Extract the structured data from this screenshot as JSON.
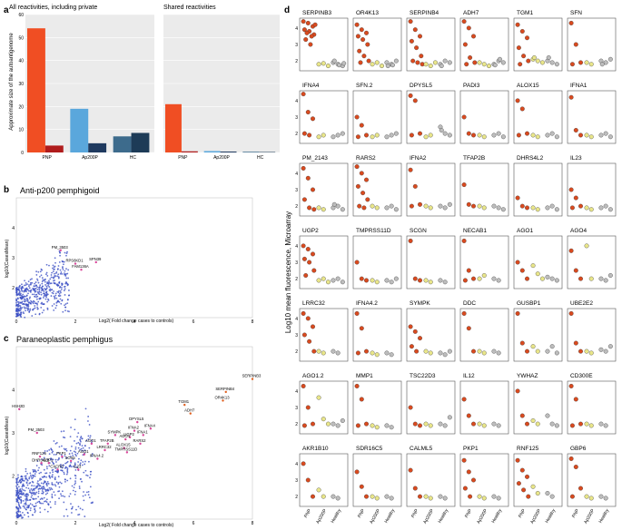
{
  "panel_labels": {
    "a": "a",
    "b": "b",
    "c": "c",
    "d": "d"
  },
  "colors": {
    "pnp_light": "#f04e23",
    "pnp_dark": "#b01c1c",
    "ap_light": "#5aa7dc",
    "ap_dark": "#1f3a5f",
    "hc_light": "#3d6b8c",
    "hc_dark": "#1d3b57",
    "dot_blue": "#3b4fc4",
    "dot_pink": "#d9479a",
    "dot_orange": "#e06020",
    "pnp_dot": "#d94a1f",
    "ap_dot": "#e9e68a",
    "hc_dot": "#bdbdbd"
  },
  "chart_data": [
    {
      "id": "a1",
      "type": "bar",
      "title": "All reactivities, including private",
      "ylabel": "Approximate size of the autoantigenome",
      "ylim": [
        0,
        60
      ],
      "yticks": [
        "0",
        "10",
        "20",
        "30",
        "40",
        "50",
        "60"
      ],
      "groups": [
        "PNP",
        "Ap200P",
        "HC"
      ],
      "series": [
        {
          "name": "light",
          "values": [
            54,
            19,
            7
          ]
        },
        {
          "name": "dark",
          "values": [
            3,
            4,
            8.5
          ]
        }
      ]
    },
    {
      "id": "a2",
      "type": "bar",
      "title": "Shared reactivities",
      "ylim": [
        0,
        60
      ],
      "groups": [
        "PNP",
        "Ap200P",
        "HC"
      ],
      "series": [
        {
          "name": "light",
          "values": [
            21,
            0.6,
            0.3
          ]
        },
        {
          "name": "dark",
          "values": [
            0.5,
            0.4,
            0.2
          ]
        }
      ]
    },
    {
      "id": "b",
      "type": "scatter",
      "title": "Anti-p200 pemphigoid",
      "xlabel": "Log2( Fold change cases to controls)",
      "ylabel": "log10(CasesMean)",
      "xlim": [
        0,
        8
      ],
      "ylim": [
        1,
        5
      ],
      "xticks": [
        "0",
        "2",
        "4",
        "6",
        "8"
      ],
      "yticks": [
        "2",
        "3",
        "4"
      ],
      "labeled_points": [
        {
          "label": "PM_3503",
          "x": 1.5,
          "y": 3.25
        },
        {
          "label": "RPS6KD1",
          "x": 2.0,
          "y": 2.8
        },
        {
          "label": "SPN39",
          "x": 2.7,
          "y": 2.85
        },
        {
          "label": "FAM136A",
          "x": 2.2,
          "y": 2.6
        }
      ]
    },
    {
      "id": "c",
      "type": "scatter",
      "title": "Paraneoplastic pemphigus",
      "xlabel": "Log2( Fold change cases to controls)",
      "ylabel": "log10(CasesMean)",
      "xlim": [
        0,
        8
      ],
      "ylim": [
        1,
        5
      ],
      "xticks": [
        "0",
        "2",
        "4",
        "6",
        "8"
      ],
      "yticks": [
        "2",
        "3",
        "4"
      ],
      "labeled_points": [
        {
          "label": "SERPINB3",
          "x": 8.0,
          "y": 4.25
        },
        {
          "label": "SERPINB4",
          "x": 7.1,
          "y": 3.95
        },
        {
          "label": "OR4K13",
          "x": 7.0,
          "y": 3.75
        },
        {
          "label": "TGM1",
          "x": 5.7,
          "y": 3.65
        },
        {
          "label": "ADH7",
          "x": 5.9,
          "y": 3.45
        },
        {
          "label": "DPYSL5",
          "x": 4.1,
          "y": 3.25
        },
        {
          "label": "IFNA4",
          "x": 4.55,
          "y": 3.1
        },
        {
          "label": "IFNA2",
          "x": 4.0,
          "y": 3.05
        },
        {
          "label": "IFNA1",
          "x": 4.3,
          "y": 2.95
        },
        {
          "label": "SYMPK",
          "x": 3.35,
          "y": 2.95
        },
        {
          "label": "UGP2",
          "x": 3.85,
          "y": 2.9
        },
        {
          "label": "ADO4",
          "x": 3.7,
          "y": 2.85
        },
        {
          "label": "RARS2",
          "x": 4.2,
          "y": 2.75
        },
        {
          "label": "AGO1",
          "x": 2.55,
          "y": 2.75
        },
        {
          "label": "TFAP2B",
          "x": 3.1,
          "y": 2.75
        },
        {
          "label": "ALOX15",
          "x": 3.65,
          "y": 2.65
        },
        {
          "label": "LRRC32",
          "x": 3.0,
          "y": 2.6
        },
        {
          "label": "TMPRSS11D",
          "x": 3.75,
          "y": 2.55
        },
        {
          "label": "RNF125",
          "x": 0.8,
          "y": 2.45
        },
        {
          "label": "PKP1",
          "x": 1.55,
          "y": 2.45
        },
        {
          "label": "AGO1",
          "x": 2.3,
          "y": 2.5
        },
        {
          "label": "IFNA4.2",
          "x": 2.75,
          "y": 2.4
        },
        {
          "label": "SOX5",
          "x": 1.85,
          "y": 2.35
        },
        {
          "label": "GBP1",
          "x": 1.1,
          "y": 2.3
        },
        {
          "label": "DHRS4L2",
          "x": 0.85,
          "y": 2.3
        },
        {
          "label": "CXCR3",
          "x": 1.4,
          "y": 2.15
        },
        {
          "label": "IL23",
          "x": 2.1,
          "y": 2.15
        },
        {
          "label": "PM_3503",
          "x": 0.7,
          "y": 3.0
        },
        {
          "label": "HSH2D",
          "x": 0.1,
          "y": 3.55
        }
      ]
    },
    {
      "id": "d",
      "type": "scatter",
      "ylabel": "Log10 mean fluorescence, Microarray",
      "ylim": [
        1.4,
        4.6
      ],
      "yticks": [
        "2",
        "3",
        "4"
      ],
      "categories": [
        "PNP",
        "Ap200P",
        "Healthy"
      ],
      "facets": [
        {
          "name": "SERPINB3",
          "pnp": [
            4.4,
            4.3,
            4.1,
            3.9,
            3.8,
            3.6,
            3.3,
            3.0,
            4.2,
            3.7,
            3.5
          ],
          "ap": [
            1.8,
            1.85,
            1.7
          ],
          "hc": [
            1.9,
            1.8,
            1.7,
            2.0,
            1.75,
            1.85
          ]
        },
        {
          "name": "OR4K13",
          "pnp": [
            4.2,
            3.9,
            3.7,
            3.5,
            3.3,
            3.0,
            2.6,
            2.3,
            2.0,
            1.9
          ],
          "ap": [
            1.8,
            1.9,
            1.7
          ],
          "hc": [
            1.9,
            1.8,
            2.0,
            1.7,
            1.75
          ]
        },
        {
          "name": "SERPINB4",
          "pnp": [
            4.4,
            3.9,
            3.5,
            3.2,
            2.8,
            2.3,
            2.0,
            1.9,
            1.8
          ],
          "ap": [
            1.8,
            1.7,
            1.9
          ],
          "hc": [
            1.8,
            2.0,
            1.9,
            1.7
          ]
        },
        {
          "name": "ADH7",
          "pnp": [
            4.4,
            4.0,
            3.5,
            3.0,
            2.2,
            1.9,
            1.8
          ],
          "ap": [
            1.9,
            1.8,
            1.7
          ],
          "hc": [
            1.8,
            2.0,
            1.9,
            1.75,
            2.1
          ]
        },
        {
          "name": "TGM1",
          "pnp": [
            4.2,
            3.8,
            3.4,
            2.8,
            2.3,
            2.0,
            1.8
          ],
          "ap": [
            2.1,
            2.0,
            1.9,
            2.2
          ],
          "hc": [
            2.0,
            1.9,
            1.8,
            2.2
          ]
        },
        {
          "name": "SFN",
          "pnp": [
            4.3,
            3.0,
            1.9,
            1.8
          ],
          "ap": [
            1.9,
            1.8
          ],
          "hc": [
            2.0,
            1.9,
            2.1,
            1.8
          ]
        },
        {
          "name": "IFNA4",
          "pnp": [
            4.4,
            3.3,
            2.9,
            2.0,
            1.9
          ],
          "ap": [
            1.8,
            1.9
          ],
          "hc": [
            1.8,
            1.9,
            2.0
          ]
        },
        {
          "name": "SFN.2",
          "pnp": [
            3.0,
            2.5,
            1.9,
            1.8
          ],
          "ap": [
            1.8,
            1.9
          ],
          "hc": [
            1.8,
            1.9,
            2.0
          ]
        },
        {
          "name": "DPYSL5",
          "pnp": [
            4.3,
            4.0,
            2.0,
            1.9
          ],
          "ap": [
            1.8,
            1.9
          ],
          "hc": [
            2.4,
            2.0,
            1.9,
            2.2
          ]
        },
        {
          "name": "PADI3",
          "pnp": [
            3.0,
            2.0,
            1.9
          ],
          "ap": [
            1.9,
            1.8
          ],
          "hc": [
            1.9,
            2.0,
            1.8
          ]
        },
        {
          "name": "ALOX15",
          "pnp": [
            4.0,
            3.5,
            2.0,
            1.9
          ],
          "ap": [
            1.9,
            1.8
          ],
          "hc": [
            1.9,
            2.0,
            1.8
          ]
        },
        {
          "name": "IFNA1",
          "pnp": [
            4.2,
            2.2,
            1.9
          ],
          "ap": [
            1.9,
            1.8
          ],
          "hc": [
            1.9,
            2.0,
            1.8
          ]
        },
        {
          "name": "PM_2143",
          "pnp": [
            4.3,
            3.7,
            3.0,
            2.4,
            1.9,
            1.8
          ],
          "ap": [
            1.9,
            1.8
          ],
          "hc": [
            1.9,
            2.0,
            1.8,
            2.1
          ]
        },
        {
          "name": "RARS2",
          "pnp": [
            4.4,
            4.0,
            3.6,
            3.2,
            2.8,
            2.4,
            2.0,
            1.9
          ],
          "ap": [
            2.0,
            1.9
          ],
          "hc": [
            1.9,
            2.0,
            1.8
          ]
        },
        {
          "name": "IFNA2",
          "pnp": [
            4.2,
            3.2,
            2.1,
            2.0
          ],
          "ap": [
            2.0,
            1.9
          ],
          "hc": [
            2.0,
            1.9,
            2.1
          ]
        },
        {
          "name": "TFAP2B",
          "pnp": [
            3.3,
            2.1,
            2.0
          ],
          "ap": [
            2.0,
            1.9
          ],
          "hc": [
            2.0,
            1.9,
            1.8
          ]
        },
        {
          "name": "DHRS4L2",
          "pnp": [
            2.5,
            2.0,
            1.9
          ],
          "ap": [
            1.9,
            1.8
          ],
          "hc": [
            1.9,
            2.0,
            1.8
          ]
        },
        {
          "name": "IL23",
          "pnp": [
            3.0,
            2.5,
            2.0,
            1.9
          ],
          "ap": [
            1.9,
            1.8
          ],
          "hc": [
            1.9,
            2.0,
            1.8
          ]
        },
        {
          "name": "UGP2",
          "pnp": [
            4.0,
            3.8,
            3.5,
            3.2,
            3.0,
            2.5,
            2.2
          ],
          "ap": [
            1.9,
            2.0,
            1.8
          ],
          "hc": [
            1.9,
            2.0,
            1.8
          ]
        },
        {
          "name": "TMPRSS11D",
          "pnp": [
            3.0,
            2.0,
            1.9
          ],
          "ap": [
            1.9,
            1.8
          ],
          "hc": [
            1.9,
            1.8,
            2.0
          ]
        },
        {
          "name": "SCGN",
          "pnp": [
            4.3,
            2.0,
            1.9
          ],
          "ap": [
            1.9,
            1.8
          ],
          "hc": [
            1.9,
            1.8
          ]
        },
        {
          "name": "NECAB1",
          "pnp": [
            4.3,
            2.5,
            2.0,
            1.9
          ],
          "ap": [
            2.0,
            2.2
          ],
          "hc": [
            2.0,
            1.9
          ]
        },
        {
          "name": "AGO1",
          "pnp": [
            3.0,
            2.5,
            2.0
          ],
          "ap": [
            2.8,
            2.3,
            2.0
          ],
          "hc": [
            2.1,
            2.0,
            1.9
          ]
        },
        {
          "name": "AGO4",
          "pnp": [
            3.7,
            2.5,
            2.0
          ],
          "ap": [
            4.0,
            2.0
          ],
          "hc": [
            2.0,
            1.9,
            2.2
          ]
        },
        {
          "name": "LRRC32",
          "pnp": [
            4.3,
            4.0,
            3.5,
            3.0,
            2.6,
            2.0
          ],
          "ap": [
            2.0,
            1.9
          ],
          "hc": [
            2.0,
            1.9
          ]
        },
        {
          "name": "IFNA4.2",
          "pnp": [
            4.3,
            3.4,
            2.0,
            1.9
          ],
          "ap": [
            1.9,
            1.8
          ],
          "hc": [
            1.9,
            1.8
          ]
        },
        {
          "name": "SYMPK",
          "pnp": [
            3.5,
            3.2,
            2.8,
            2.3,
            2.0
          ],
          "ap": [
            2.0,
            1.9
          ],
          "hc": [
            1.9,
            1.8,
            2.0
          ]
        },
        {
          "name": "DDC",
          "pnp": [
            4.3,
            3.4,
            2.0
          ],
          "ap": [
            2.0,
            1.9
          ],
          "hc": [
            2.0,
            1.9
          ]
        },
        {
          "name": "GUSBP1",
          "pnp": [
            4.3,
            2.5,
            2.0
          ],
          "ap": [
            2.3,
            2.0
          ],
          "hc": [
            2.0,
            2.3,
            1.9
          ]
        },
        {
          "name": "UBE2E2",
          "pnp": [
            4.3,
            2.5,
            2.0
          ],
          "ap": [
            2.0,
            1.9
          ],
          "hc": [
            2.1,
            2.0,
            2.3
          ]
        },
        {
          "name": "AGO1.2",
          "pnp": [
            4.3,
            3.0,
            2.0,
            1.9
          ],
          "ap": [
            3.6,
            2.3,
            2.0
          ],
          "hc": [
            2.0,
            1.9,
            2.2
          ]
        },
        {
          "name": "MMP1",
          "pnp": [
            4.3,
            3.5,
            2.0,
            1.9
          ],
          "ap": [
            1.9,
            1.8
          ],
          "hc": [
            1.9,
            1.8
          ]
        },
        {
          "name": "TSC22D3",
          "pnp": [
            3.0,
            2.0,
            1.9
          ],
          "ap": [
            2.0,
            1.9
          ],
          "hc": [
            2.0,
            1.9,
            2.4
          ]
        },
        {
          "name": "IL12",
          "pnp": [
            3.5,
            2.5,
            2.0
          ],
          "ap": [
            2.0,
            1.9
          ],
          "hc": [
            2.0,
            1.9
          ]
        },
        {
          "name": "YWHAZ",
          "pnp": [
            4.0,
            2.5,
            2.0
          ],
          "ap": [
            2.2,
            2.0
          ],
          "hc": [
            2.5,
            2.0,
            1.9
          ]
        },
        {
          "name": "CD300E",
          "pnp": [
            4.3,
            3.5,
            2.0,
            1.9
          ],
          "ap": [
            2.0,
            1.9
          ],
          "hc": [
            2.0,
            1.9
          ]
        },
        {
          "name": "AKR1B10",
          "pnp": [
            4.0,
            3.0,
            2.0
          ],
          "ap": [
            2.4,
            2.0
          ],
          "hc": [
            2.0,
            1.9
          ]
        },
        {
          "name": "SDR16C5",
          "pnp": [
            3.5,
            2.6,
            2.0
          ],
          "ap": [
            2.0,
            1.9
          ],
          "hc": [
            2.0,
            1.9
          ]
        },
        {
          "name": "CALML5",
          "pnp": [
            3.6,
            2.5,
            2.0
          ],
          "ap": [
            2.0,
            1.9
          ],
          "hc": [
            2.0,
            1.9
          ]
        },
        {
          "name": "PKP1",
          "pnp": [
            4.2,
            3.5,
            3.0,
            2.5,
            2.0
          ],
          "ap": [
            2.0,
            1.9
          ],
          "hc": [
            2.0,
            1.9
          ]
        },
        {
          "name": "RNF125",
          "pnp": [
            4.2,
            3.6,
            3.2,
            2.8,
            2.4,
            2.0
          ],
          "ap": [
            2.6,
            2.2
          ],
          "hc": [
            2.2,
            2.0
          ]
        },
        {
          "name": "GBP6",
          "pnp": [
            4.3,
            3.8,
            2.5,
            2.0
          ],
          "ap": [
            2.0,
            1.9
          ],
          "hc": [
            2.0,
            1.9
          ]
        }
      ]
    }
  ]
}
